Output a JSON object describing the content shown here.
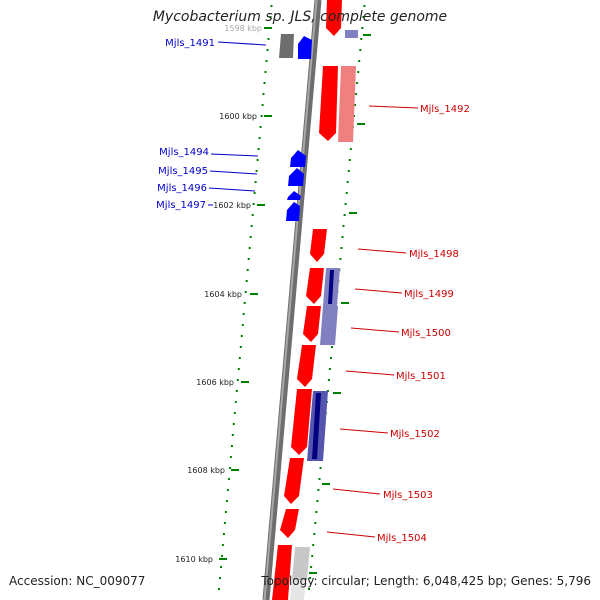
{
  "title": "Mycobacterium sp. JLS, complete genome",
  "accession": "Accession: NC_009077",
  "summary": "Topology: circular; Length: 6,048,425 bp; Genes: 5,796",
  "colors": {
    "forward": "#ff0000",
    "reverse": "#0000ff",
    "backbone": "#808080",
    "tick": "#008000",
    "label_forward": "#cc0000",
    "label_reverse": "#0000cc"
  },
  "ticks": [
    {
      "label": "1598 kbp"
    },
    {
      "label": "1600 kbp"
    },
    {
      "label": "1602 kbp"
    },
    {
      "label": "1604 kbp"
    },
    {
      "label": "1606 kbp"
    },
    {
      "label": "1608 kbp"
    },
    {
      "label": "1610 kbp"
    }
  ],
  "gene_labels": [
    {
      "name": "Mjls_1491",
      "strand": "reverse"
    },
    {
      "name": "Mjls_1492",
      "strand": "forward"
    },
    {
      "name": "Mjls_1494",
      "strand": "reverse"
    },
    {
      "name": "Mjls_1495",
      "strand": "reverse"
    },
    {
      "name": "Mjls_1496",
      "strand": "reverse"
    },
    {
      "name": "Mjls_1497",
      "strand": "reverse"
    },
    {
      "name": "Mjls_1498",
      "strand": "forward"
    },
    {
      "name": "Mjls_1499",
      "strand": "forward"
    },
    {
      "name": "Mjls_1500",
      "strand": "forward"
    },
    {
      "name": "Mjls_1501",
      "strand": "forward"
    },
    {
      "name": "Mjls_1502",
      "strand": "forward"
    },
    {
      "name": "Mjls_1503",
      "strand": "forward"
    },
    {
      "name": "Mjls_1504",
      "strand": "forward"
    }
  ]
}
